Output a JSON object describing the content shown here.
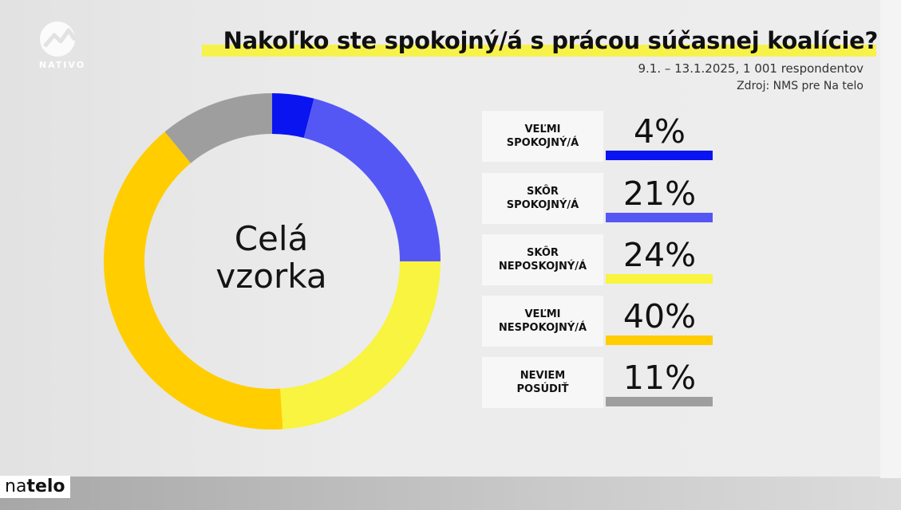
{
  "header": {
    "title": "Nakoľko ste spokojný/á s prácou súčasnej koalície?",
    "subtitle": "9.1. – 13.1.2025, 1 001 respondentov",
    "source": "Zdroj: NMS pre Na telo"
  },
  "logo": {
    "text": "NATIVO",
    "icon": "nativo-logo-icon"
  },
  "brand": {
    "part1": "na",
    "part2": "telo"
  },
  "chart_data": {
    "type": "pie",
    "center_label": [
      "Celá",
      "vzorka"
    ],
    "unit": "%",
    "slices": [
      {
        "label": [
          "VEĽMI",
          "SPOKOJNÝ/Á"
        ],
        "value": 4,
        "display": "4%",
        "color": "#0a14f0"
      },
      {
        "label": [
          "SKÔR",
          "SPOKOJNÝ/Á"
        ],
        "value": 21,
        "display": "21%",
        "color": "#5557f5"
      },
      {
        "label": [
          "SKÔR",
          "NEPOSKOJNÝ/Á"
        ],
        "value": 24,
        "display": "24%",
        "color": "#f8f43f"
      },
      {
        "label": [
          "VEĽMI",
          "NESPOKOJNÝ/Á"
        ],
        "value": 40,
        "display": "40%",
        "color": "#ffcd00"
      },
      {
        "label": [
          "NEVIEM",
          "POSÚDIŤ"
        ],
        "value": 11,
        "display": "11%",
        "color": "#9e9e9e"
      }
    ]
  }
}
